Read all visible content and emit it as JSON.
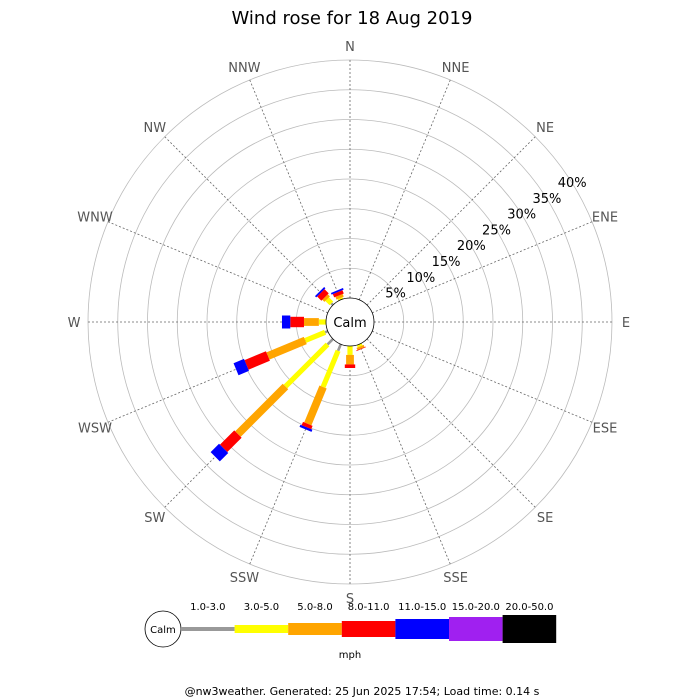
{
  "chart_data": {
    "type": "wind-rose",
    "title": "Wind rose for 18 Aug 2019",
    "directions": [
      "N",
      "NNE",
      "NE",
      "ENE",
      "E",
      "ESE",
      "SE",
      "SSE",
      "S",
      "SSW",
      "SW",
      "WSW",
      "W",
      "WNW",
      "NW",
      "NNW"
    ],
    "ring_labels": [
      "5%",
      "10%",
      "15%",
      "20%",
      "25%",
      "30%",
      "35%",
      "40%"
    ],
    "rmax_percent": 40,
    "calm_label": "Calm",
    "speed_bins": [
      "1.0-3.0",
      "3.0-5.0",
      "5.0-8.0",
      "8.0-11.0",
      "11.0-15.0",
      "15.0-20.0",
      "20.0-50.0"
    ],
    "bin_colors": [
      "#999999",
      "#ffff00",
      "#ffa500",
      "#ff0000",
      "#0000ff",
      "#a020f0",
      "#000000"
    ],
    "unit": "mph",
    "series": [
      {
        "direction": "W",
        "values": [
          0.0,
          1.2,
          2.5,
          2.3,
          1.4,
          0,
          0
        ]
      },
      {
        "direction": "WSW",
        "values": [
          0.5,
          3.6,
          6.8,
          3.9,
          1.9,
          0,
          0
        ]
      },
      {
        "direction": "SW",
        "values": [
          1.3,
          10.0,
          11.3,
          3.4,
          2.0,
          0,
          0
        ]
      },
      {
        "direction": "SSW",
        "values": [
          1.2,
          6.6,
          6.7,
          0.6,
          0.4,
          0,
          0
        ]
      },
      {
        "direction": "S",
        "values": [
          0.0,
          1.5,
          1.6,
          0.6,
          0,
          0,
          0
        ]
      },
      {
        "direction": "SSE",
        "values": [
          0.0,
          0.4,
          0.4,
          0.1,
          0,
          0,
          0
        ]
      },
      {
        "direction": "NW",
        "values": [
          0.4,
          1.0,
          0.5,
          1.0,
          0.3,
          0,
          0
        ]
      },
      {
        "direction": "NNW",
        "values": [
          0.0,
          0.3,
          0.5,
          0.6,
          0.3,
          0,
          0
        ]
      }
    ]
  },
  "footer": "@nw3weather. Generated: 25 Jun 2025 17:54; Load time: 0.14 s"
}
